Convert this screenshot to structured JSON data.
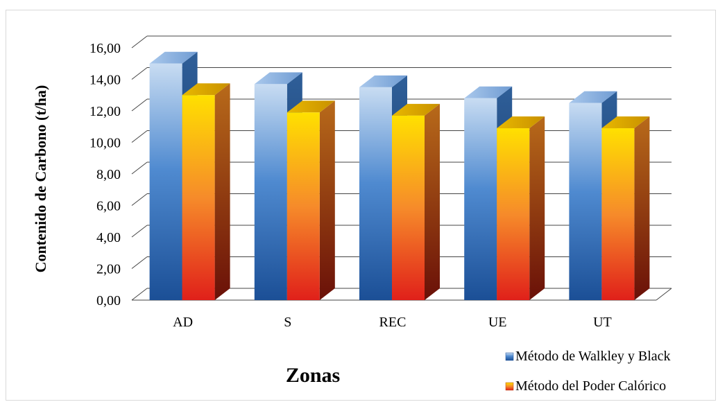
{
  "chart_data": {
    "type": "bar",
    "title": "",
    "xlabel": "Zonas",
    "ylabel": "Contenido de Carbono (t/ha)",
    "categories": [
      "AD",
      "S",
      "REC",
      "UE",
      "UT"
    ],
    "yticks": [
      "0,00",
      "2,00",
      "4,00",
      "6,00",
      "8,00",
      "10,00",
      "12,00",
      "14,00",
      "16,00"
    ],
    "ylim": [
      0,
      16
    ],
    "grid": true,
    "legend_position": "bottom-right",
    "series": [
      {
        "name": "Método de Walkley y Black",
        "values": [
          15.0,
          13.7,
          13.5,
          12.8,
          12.5
        ],
        "color": "#2e6db4"
      },
      {
        "name": "Método del Poder Calórico",
        "values": [
          13.0,
          11.9,
          11.7,
          10.9,
          10.9
        ],
        "color": "#f08020"
      }
    ]
  }
}
